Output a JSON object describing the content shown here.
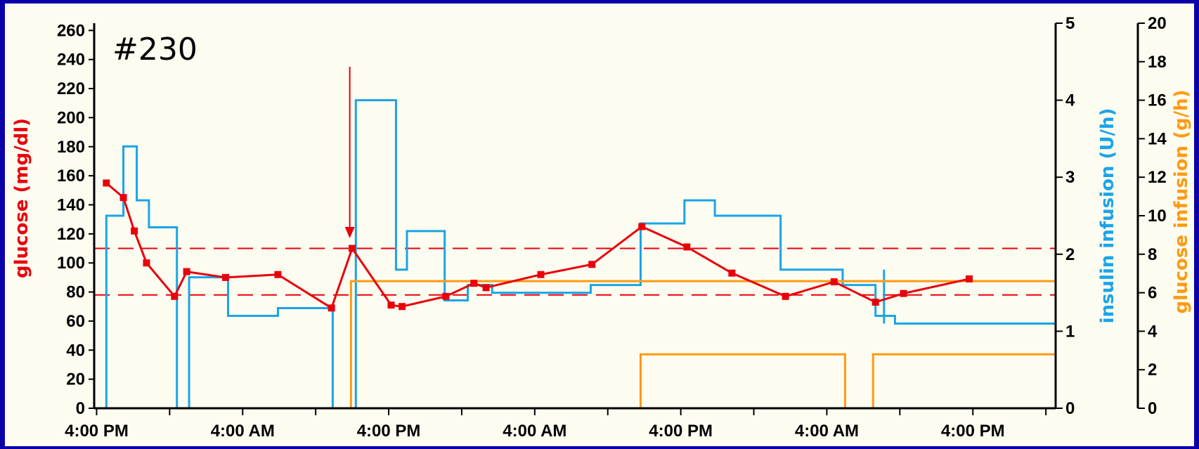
{
  "panel_id": "#230",
  "chart_data": {
    "type": "line",
    "x_ticks": [
      "4:00 PM",
      "4:00 AM",
      "4:00 PM",
      "4:00 AM",
      "4:00 PM",
      "4:00 AM",
      "4:00 PM"
    ],
    "x_tick_hours": [
      0,
      12,
      24,
      36,
      48,
      60,
      72
    ],
    "xlim_hours": [
      -0.2,
      78.8
    ],
    "axes": {
      "left": {
        "label": "glucose (mg/dl)",
        "ylim": [
          0,
          265
        ],
        "ticks": [
          0,
          20,
          40,
          60,
          80,
          100,
          120,
          140,
          160,
          180,
          200,
          220,
          240,
          260
        ],
        "color": "#e8000b"
      },
      "right1": {
        "label": "insulin infusion (U/h)",
        "ylim": [
          0,
          5
        ],
        "ticks": [
          0,
          1,
          2,
          3,
          4,
          5
        ],
        "color": "#1aa4e8"
      },
      "right2": {
        "label": "glucose infusion (g/h)",
        "ylim": [
          0,
          20
        ],
        "ticks": [
          0,
          2,
          4,
          6,
          8,
          10,
          12,
          14,
          16,
          18,
          20
        ],
        "color": "#ff9a14"
      }
    },
    "target_band_mg_dl": [
      78,
      110
    ],
    "annotation_arrow_hour": 20.8,
    "series": [
      {
        "axis": "left",
        "color": "#e8000b",
        "x_hours": [
          0.8,
          2.2,
          3.1,
          4.1,
          6.4,
          7.4,
          10.6,
          14.9,
          19.3,
          21.0,
          24.2,
          25.1,
          28.7,
          31.0,
          32.0,
          36.5,
          40.7,
          44.8,
          48.5,
          52.2,
          56.6,
          60.6,
          64.0,
          66.3,
          71.7
        ],
        "y": [
          155,
          145,
          122,
          100,
          77,
          94,
          90,
          92,
          69,
          110,
          71,
          70,
          77,
          86,
          83,
          92,
          99,
          125,
          111,
          93,
          77,
          87,
          73,
          79,
          89
        ]
      },
      {
        "axis": "right1",
        "color": "#1aa4e8",
        "step_x_hours": [
          0.8,
          2.2,
          3.3,
          4.3,
          6.6,
          7.6,
          10.8,
          14.9,
          19.4,
          21.3,
          24.6,
          25.5,
          28.6,
          30.5,
          32.5,
          40.6,
          44.7,
          48.3,
          50.8,
          56.2,
          61.3,
          64.0,
          65.6,
          67.4
        ],
        "step_y": [
          2.5,
          3.4,
          2.7,
          2.35,
          0,
          1.7,
          1.2,
          1.3,
          0,
          4.0,
          1.8,
          2.3,
          1.4,
          1.6,
          1.5,
          1.6,
          2.4,
          2.7,
          2.5,
          1.8,
          1.6,
          1.2,
          1.1,
          1.1
        ],
        "spike_at_hour": 64.7,
        "spike_top": 1.8,
        "drop_out_hours": [
          6.4,
          19.3
        ]
      },
      {
        "axis": "right2",
        "color": "#ff9a14",
        "upper": {
          "x_hours": [
            20.9,
            78.8
          ],
          "y": 6.6
        },
        "lower": [
          {
            "x_hours": [
              44.7,
              61.5
            ],
            "y": 2.8
          },
          {
            "x_hours": [
              63.8,
              78.8
            ],
            "y": 2.8
          }
        ]
      }
    ]
  }
}
